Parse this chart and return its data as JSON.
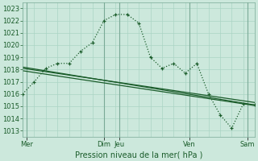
{
  "title": "",
  "xlabel": "Pression niveau de la mer( hPa )",
  "ylim": [
    1012.5,
    1023.5
  ],
  "xlim": [
    0,
    120
  ],
  "yticks": [
    1013,
    1014,
    1015,
    1016,
    1017,
    1018,
    1019,
    1020,
    1021,
    1022,
    1023
  ],
  "xtick_positions": [
    2,
    42,
    50,
    86,
    116
  ],
  "xtick_labels": [
    "Mer",
    "Dim",
    "Jeu",
    "Ven",
    "Sam"
  ],
  "bg_color": "#cce8dc",
  "grid_color": "#aad4c4",
  "line_color": "#1a5c2a",
  "line1": {
    "x": [
      0,
      6,
      12,
      18,
      24,
      30,
      36,
      42,
      48,
      54,
      60,
      66,
      72,
      78,
      84,
      90,
      96,
      102,
      108,
      114,
      120
    ],
    "y": [
      1016.0,
      1017.0,
      1018.1,
      1018.5,
      1018.5,
      1019.5,
      1020.2,
      1022.0,
      1022.5,
      1022.5,
      1021.8,
      1019.0,
      1018.1,
      1018.5,
      1017.7,
      1018.5,
      1016.0,
      1014.3,
      1013.2,
      1015.2,
      1015.1
    ]
  },
  "line2": {
    "x": [
      0,
      120
    ],
    "y": [
      1018.2,
      1015.1
    ]
  },
  "line3": {
    "x": [
      0,
      120
    ],
    "y": [
      1018.1,
      1015.3
    ]
  },
  "line4": {
    "x": [
      0,
      120
    ],
    "y": [
      1017.9,
      1015.05
    ]
  },
  "vline_positions": [
    2,
    42,
    50,
    86,
    116
  ],
  "minor_grid_x_step": 6
}
